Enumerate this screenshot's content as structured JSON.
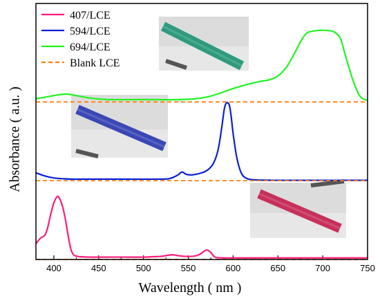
{
  "chart_data": {
    "type": "line",
    "xlabel": "Wavelength ( nm )",
    "ylabel": "Absorbance ( a.u. )",
    "xlim": [
      380,
      750
    ],
    "xticks": [
      400,
      450,
      500,
      550,
      600,
      650,
      700,
      750
    ],
    "y_scale": "offset stacked, arbitrary units",
    "ylim": [
      0,
      3.25
    ],
    "legend_position": "top-left",
    "series": [
      {
        "name": "407/LCE",
        "color": "#ff1a7a",
        "offset": 0,
        "x": [
          380,
          385,
          390,
          393,
          396,
          400,
          404,
          407,
          410,
          413,
          416,
          419,
          422,
          426,
          430,
          440,
          460,
          480,
          500,
          510,
          520,
          528,
          533,
          538,
          545,
          555,
          562,
          567,
          571,
          575,
          580,
          590,
          610,
          650,
          700,
          750
        ],
        "y": [
          0.2,
          0.27,
          0.31,
          0.4,
          0.55,
          0.72,
          0.8,
          0.76,
          0.66,
          0.5,
          0.3,
          0.13,
          0.06,
          0.04,
          0.035,
          0.03,
          0.03,
          0.03,
          0.03,
          0.035,
          0.04,
          0.055,
          0.06,
          0.05,
          0.04,
          0.04,
          0.06,
          0.1,
          0.12,
          0.09,
          0.03,
          0.02,
          0.02,
          0.02,
          0.02,
          0.02
        ]
      },
      {
        "name": "594/LCE",
        "color": "#0a1fd6",
        "offset": 1,
        "x": [
          380,
          390,
          400,
          410,
          420,
          440,
          480,
          520,
          530,
          538,
          543,
          548,
          555,
          565,
          572,
          578,
          583,
          587,
          590,
          592,
          594,
          596,
          598,
          600,
          604,
          609,
          615,
          625,
          650,
          700,
          750
        ],
        "y": [
          0.1,
          0.06,
          0.035,
          0.025,
          0.02,
          0.02,
          0.02,
          0.02,
          0.03,
          0.07,
          0.11,
          0.08,
          0.075,
          0.1,
          0.14,
          0.22,
          0.38,
          0.65,
          0.9,
          0.98,
          0.99,
          0.95,
          0.8,
          0.6,
          0.3,
          0.1,
          0.03,
          0.01,
          0.005,
          0.005,
          0.005
        ]
      },
      {
        "name": "694/LCE",
        "color": "#1ff51f",
        "offset": 2,
        "x": [
          380,
          395,
          405,
          415,
          425,
          440,
          460,
          500,
          540,
          570,
          600,
          615,
          630,
          640,
          650,
          660,
          670,
          677,
          683,
          690,
          700,
          710,
          715,
          720,
          725,
          733,
          740,
          745,
          750
        ],
        "y": [
          0.04,
          0.07,
          0.09,
          0.1,
          0.08,
          0.05,
          0.03,
          0.03,
          0.03,
          0.06,
          0.17,
          0.22,
          0.26,
          0.28,
          0.33,
          0.45,
          0.65,
          0.8,
          0.88,
          0.9,
          0.91,
          0.9,
          0.87,
          0.8,
          0.6,
          0.3,
          0.1,
          0.04,
          0.02
        ]
      },
      {
        "name": "Blank LCE",
        "color": "#ff7f0e",
        "dashed": true,
        "x": [
          380,
          750
        ],
        "baselines": [
          0,
          1,
          2
        ]
      }
    ],
    "insets": [
      {
        "series": "694/LCE",
        "description": "photo of green-colored LCE strip",
        "strip_color": "#2f9a7e"
      },
      {
        "series": "594/LCE",
        "description": "photo of blue-colored LCE strip",
        "strip_color": "#3a48b5"
      },
      {
        "series": "407/LCE",
        "description": "photo of magenta-colored LCE strip",
        "strip_color": "#c6305a"
      }
    ]
  }
}
